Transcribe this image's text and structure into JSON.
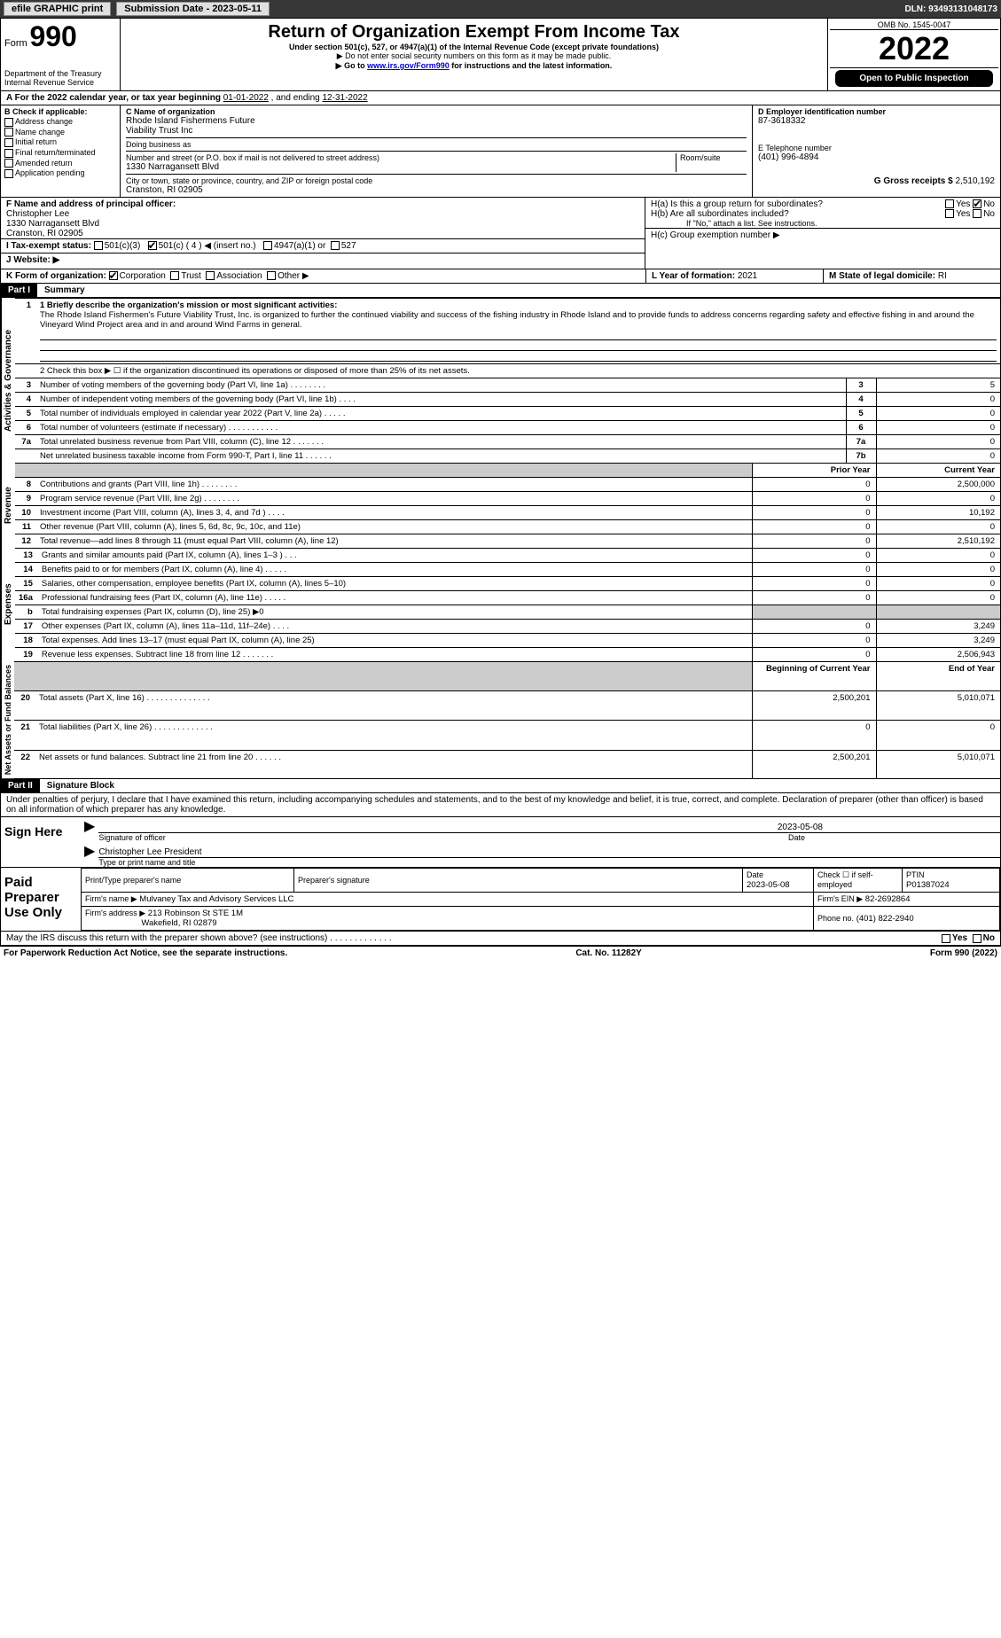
{
  "topbar": {
    "efile_label": "efile GRAPHIC print",
    "submission_label": "Submission Date - 2023-05-11",
    "dln_label": "DLN: 93493131048173"
  },
  "header": {
    "form_label": "Form",
    "form_number": "990",
    "title": "Return of Organization Exempt From Income Tax",
    "subtitle": "Under section 501(c), 527, or 4947(a)(1) of the Internal Revenue Code (except private foundations)",
    "ssn_note": "▶ Do not enter social security numbers on this form as it may be made public.",
    "goto_prefix": "▶ Go to ",
    "goto_link": "www.irs.gov/Form990",
    "goto_suffix": " for instructions and the latest information.",
    "dept": "Department of the Treasury",
    "irs": "Internal Revenue Service",
    "omb": "OMB No. 1545-0047",
    "year": "2022",
    "open_public": "Open to Public Inspection"
  },
  "rowA": {
    "text_prefix": "A For the 2022 calendar year, or tax year beginning ",
    "begin": "01-01-2022",
    "mid": "     , and ending ",
    "end": "12-31-2022"
  },
  "colB": {
    "header": "B Check if applicable:",
    "items": [
      "Address change",
      "Name change",
      "Initial return",
      "Final return/terminated",
      "Amended return",
      "Application pending"
    ]
  },
  "colC": {
    "name_label": "C Name of organization",
    "name1": "Rhode Island Fishermens Future",
    "name2": "Viability Trust Inc",
    "dba_label": "Doing business as",
    "street_label": "Number and street (or P.O. box if mail is not delivered to street address)",
    "room_label": "Room/suite",
    "street": "1330 Narragansett Blvd",
    "city_label": "City or town, state or province, country, and ZIP or foreign postal code",
    "city": "Cranston, RI  02905"
  },
  "colD": {
    "label": "D Employer identification number",
    "value": "87-3618332"
  },
  "colE": {
    "label": "E Telephone number",
    "value": "(401) 996-4894"
  },
  "colG": {
    "label": "G Gross receipts $",
    "value": "2,510,192"
  },
  "colF": {
    "label": "F  Name and address of principal officer:",
    "name": "Christopher Lee",
    "street": "1330 Narragansett Blvd",
    "city": "Cranston, RI  02905"
  },
  "colH": {
    "ha": "H(a)  Is this a group return for subordinates?",
    "hb": "H(b)  Are all subordinates included?",
    "hb_note": "If \"No,\" attach a list. See instructions.",
    "hc": "H(c)  Group exemption number ▶"
  },
  "rowI": {
    "label": "I   Tax-exempt status:",
    "opts": [
      "501(c)(3)",
      "501(c) ( 4 ) ◀ (insert no.)",
      "4947(a)(1) or",
      "527"
    ]
  },
  "rowJ": {
    "label": "J   Website: ▶"
  },
  "rowK": {
    "label": "K Form of organization:",
    "opts": [
      "Corporation",
      "Trust",
      "Association",
      "Other ▶"
    ]
  },
  "rowL": {
    "label": "L Year of formation: ",
    "value": "2021"
  },
  "rowM": {
    "label": "M State of legal domicile: ",
    "value": "RI"
  },
  "part1": {
    "header": "Part I",
    "title": "Summary",
    "q1_label": "1  Briefly describe the organization's mission or most significant activities:",
    "q1_text": "The Rhode Island Fishermen's Future Viability Trust, Inc. is organized to further the continued viability and success of the fishing industry in Rhode Island and to provide funds to address concerns regarding safety and effective fishing in and around the Vineyard Wind Project area and in and around Wind Farms in general.",
    "q2": "2   Check this box ▶ ☐  if the organization discontinued its operations or disposed of more than 25% of its net assets.",
    "governance_rows": [
      {
        "n": "3",
        "t": "Number of voting members of the governing body (Part VI, line 1a)   .    .    .    .    .    .    .    .",
        "box": "3",
        "v": "5"
      },
      {
        "n": "4",
        "t": "Number of independent voting members of the governing body (Part VI, line 1b)    .    .    .    .",
        "box": "4",
        "v": "0"
      },
      {
        "n": "5",
        "t": "Total number of individuals employed in calendar year 2022 (Part V, line 2a)   .    .    .    .    .",
        "box": "5",
        "v": "0"
      },
      {
        "n": "6",
        "t": "Total number of volunteers (estimate if necessary)    .    .    .    .    .    .    .    .    .    .    .",
        "box": "6",
        "v": "0"
      },
      {
        "n": "7a",
        "t": "Total unrelated business revenue from Part VIII, column (C), line 12   .    .    .    .    .    .    .",
        "box": "7a",
        "v": "0"
      },
      {
        "n": "",
        "t": "Net unrelated business taxable income from Form 990-T, Part I, line 11    .    .    .    .    .    .",
        "box": "7b",
        "v": "0"
      }
    ],
    "col_headers": {
      "prior": "Prior Year",
      "current": "Current Year"
    },
    "revenue_rows": [
      {
        "n": "8",
        "t": "Contributions and grants (Part VIII, line 1h)   .    .    .    .    .    .    .    .",
        "p": "0",
        "c": "2,500,000"
      },
      {
        "n": "9",
        "t": "Program service revenue (Part VIII, line 2g)    .    .    .    .    .    .    .    .",
        "p": "0",
        "c": "0"
      },
      {
        "n": "10",
        "t": "Investment income (Part VIII, column (A), lines 3, 4, and 7d )   .    .    .    .",
        "p": "0",
        "c": "10,192"
      },
      {
        "n": "11",
        "t": "Other revenue (Part VIII, column (A), lines 5, 6d, 8c, 9c, 10c, and 11e)",
        "p": "0",
        "c": "0"
      },
      {
        "n": "12",
        "t": "Total revenue—add lines 8 through 11 (must equal Part VIII, column (A), line 12)",
        "p": "0",
        "c": "2,510,192"
      }
    ],
    "expense_rows": [
      {
        "n": "13",
        "t": "Grants and similar amounts paid (Part IX, column (A), lines 1–3 )   .    .    .",
        "p": "0",
        "c": "0"
      },
      {
        "n": "14",
        "t": "Benefits paid to or for members (Part IX, column (A), line 4)   .    .    .    .    .",
        "p": "0",
        "c": "0"
      },
      {
        "n": "15",
        "t": "Salaries, other compensation, employee benefits (Part IX, column (A), lines 5–10)",
        "p": "0",
        "c": "0"
      },
      {
        "n": "16a",
        "t": "Professional fundraising fees (Part IX, column (A), line 11e)    .    .    .    .    .",
        "p": "0",
        "c": "0"
      },
      {
        "n": "b",
        "t": "Total fundraising expenses (Part IX, column (D), line 25) ▶0",
        "p": "",
        "c": "",
        "gray": true
      },
      {
        "n": "17",
        "t": "Other expenses (Part IX, column (A), lines 11a–11d, 11f–24e)   .    .    .    .",
        "p": "0",
        "c": "3,249"
      },
      {
        "n": "18",
        "t": "Total expenses. Add lines 13–17 (must equal Part IX, column (A), line 25)",
        "p": "0",
        "c": "3,249"
      },
      {
        "n": "19",
        "t": "Revenue less expenses. Subtract line 18 from line 12   .    .    .    .    .    .    .",
        "p": "0",
        "c": "2,506,943"
      }
    ],
    "net_headers": {
      "begin": "Beginning of Current Year",
      "end": "End of Year"
    },
    "net_rows": [
      {
        "n": "20",
        "t": "Total assets (Part X, line 16)   .    .    .    .    .    .    .    .    .    .    .    .    .    .",
        "p": "2,500,201",
        "c": "5,010,071"
      },
      {
        "n": "21",
        "t": "Total liabilities (Part X, line 26)    .    .    .    .    .    .    .    .    .    .    .    .    .",
        "p": "0",
        "c": "0"
      },
      {
        "n": "22",
        "t": "Net assets or fund balances. Subtract line 21 from line 20   .    .    .    .    .    .",
        "p": "2,500,201",
        "c": "5,010,071"
      }
    ],
    "side_labels": {
      "gov": "Activities & Governance",
      "rev": "Revenue",
      "exp": "Expenses",
      "net": "Net Assets or Fund Balances"
    }
  },
  "part2": {
    "header": "Part II",
    "title": "Signature Block",
    "perjury": "Under penalties of perjury, I declare that I have examined this return, including accompanying schedules and statements, and to the best of my knowledge and belief, it is true, correct, and complete. Declaration of preparer (other than officer) is based on all information of which preparer has any knowledge.",
    "sign_here": "Sign Here",
    "sig_officer": "Signature of officer",
    "sig_date": "2023-05-08",
    "sig_date_label": "Date",
    "officer_name": "Christopher Lee  President",
    "officer_type_label": "Type or print name and title",
    "paid_prep": "Paid Preparer Use Only",
    "prep_name_label": "Print/Type preparer's name",
    "prep_sig_label": "Preparer's signature",
    "date_label": "Date",
    "date_val": "2023-05-08",
    "check_label": "Check ☐ if self-employed",
    "ptin_label": "PTIN",
    "ptin_val": "P01387024",
    "firm_name_label": "Firm's name     ▶",
    "firm_name": "Mulvaney Tax and Advisory Services LLC",
    "firm_ein_label": "Firm's EIN ▶",
    "firm_ein": "82-2692864",
    "firm_addr_label": "Firm's address ▶",
    "firm_addr1": "213 Robinson St STE 1M",
    "firm_addr2": "Wakefield, RI  02879",
    "phone_label": "Phone no.",
    "phone": "(401) 822-2940",
    "discuss": "May the IRS discuss this return with the preparer shown above? (see instructions)    .    .    .    .    .    .    .    .    .    .    .    .    ."
  },
  "footer": {
    "left": "For Paperwork Reduction Act Notice, see the separate instructions.",
    "center": "Cat. No. 11282Y",
    "right": "Form 990 (2022)"
  },
  "yesno": {
    "yes": "Yes",
    "no": "No"
  }
}
